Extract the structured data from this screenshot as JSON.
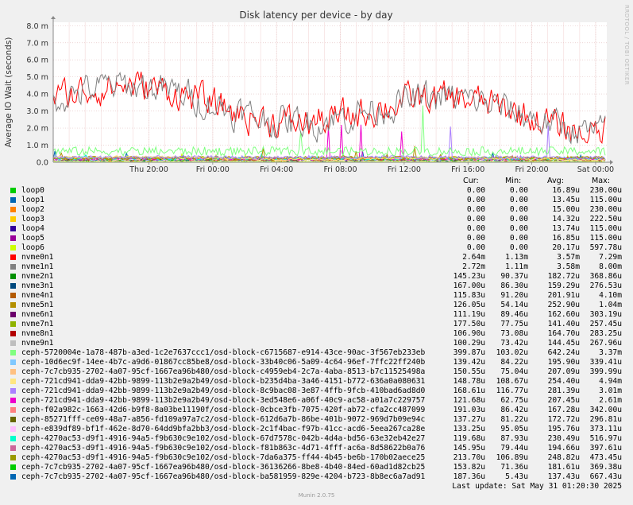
{
  "chart_data": {
    "type": "line",
    "title": "Disk latency per device - by day",
    "ylabel": "Average IO Wait (seconds)",
    "xlabel": "",
    "ylim": [
      0,
      0.0082
    ],
    "y_ticks": [
      {
        "value": 0,
        "label": "0.0"
      },
      {
        "value": 0.001,
        "label": "1.0 m"
      },
      {
        "value": 0.002,
        "label": "2.0 m"
      },
      {
        "value": 0.003,
        "label": "3.0 m"
      },
      {
        "value": 0.004,
        "label": "4.0 m"
      },
      {
        "value": 0.005,
        "label": "5.0 m"
      },
      {
        "value": 0.006,
        "label": "6.0 m"
      },
      {
        "value": 0.007,
        "label": "7.0 m"
      },
      {
        "value": 0.008,
        "label": "8.0 m"
      }
    ],
    "x_ticks": [
      "Thu 20:00",
      "Fri 00:00",
      "Fri 04:00",
      "Fri 08:00",
      "Fri 12:00",
      "Fri 16:00",
      "Fri 20:00",
      "Sat 00:00"
    ],
    "x_range_hours": [
      -6,
      28.7
    ],
    "grid": true,
    "legend_columns": [
      "Cur:",
      "Min:",
      "Avg:",
      "Max:"
    ],
    "series": [
      {
        "name": "loop0",
        "color": "#00CC00",
        "cur": "0.00",
        "min": "0.00",
        "avg": "16.89u",
        "max": "230.00u"
      },
      {
        "name": "loop1",
        "color": "#0066B3",
        "cur": "0.00",
        "min": "0.00",
        "avg": "13.45u",
        "max": "115.00u"
      },
      {
        "name": "loop2",
        "color": "#FF8000",
        "cur": "0.00",
        "min": "0.00",
        "avg": "15.00u",
        "max": "230.00u"
      },
      {
        "name": "loop3",
        "color": "#FFCC00",
        "cur": "0.00",
        "min": "0.00",
        "avg": "14.32u",
        "max": "222.50u"
      },
      {
        "name": "loop4",
        "color": "#330099",
        "cur": "0.00",
        "min": "0.00",
        "avg": "13.74u",
        "max": "115.00u"
      },
      {
        "name": "loop5",
        "color": "#990099",
        "cur": "0.00",
        "min": "0.00",
        "avg": "16.85u",
        "max": "115.00u"
      },
      {
        "name": "loop6",
        "color": "#CCFF00",
        "cur": "0.00",
        "min": "0.00",
        "avg": "20.17u",
        "max": "597.78u"
      },
      {
        "name": "nvme0n1",
        "color": "#FF0000",
        "cur": "2.64m",
        "min": "1.13m",
        "avg": "3.57m",
        "max": "7.29m"
      },
      {
        "name": "nvme1n1",
        "color": "#808080",
        "cur": "2.72m",
        "min": "1.11m",
        "avg": "3.58m",
        "max": "8.00m"
      },
      {
        "name": "nvme2n1",
        "color": "#008F00",
        "cur": "145.23u",
        "min": "90.37u",
        "avg": "182.72u",
        "max": "368.86u"
      },
      {
        "name": "nvme3n1",
        "color": "#00487D",
        "cur": "167.00u",
        "min": "86.30u",
        "avg": "159.29u",
        "max": "276.53u"
      },
      {
        "name": "nvme4n1",
        "color": "#B35A00",
        "cur": "115.83u",
        "min": "91.20u",
        "avg": "201.91u",
        "max": "4.10m"
      },
      {
        "name": "nvme5n1",
        "color": "#B38F00",
        "cur": "126.05u",
        "min": "54.14u",
        "avg": "252.90u",
        "max": "1.04m"
      },
      {
        "name": "nvme6n1",
        "color": "#6B006B",
        "cur": "111.19u",
        "min": "89.46u",
        "avg": "162.60u",
        "max": "303.19u"
      },
      {
        "name": "nvme7n1",
        "color": "#8FB300",
        "cur": "177.50u",
        "min": "77.75u",
        "avg": "141.40u",
        "max": "257.45u"
      },
      {
        "name": "nvme8n1",
        "color": "#B30000",
        "cur": "106.90u",
        "min": "73.08u",
        "avg": "164.70u",
        "max": "283.25u"
      },
      {
        "name": "nvme9n1",
        "color": "#BEBEBE",
        "cur": "100.29u",
        "min": "73.42u",
        "avg": "144.45u",
        "max": "267.96u"
      },
      {
        "name": "ceph-5720004e-1a78-487b-a3ed-1c2e7637ccc1/osd-block-c6715687-e914-43ce-90ac-3f567eb233eb",
        "color": "#80FF80",
        "cur": "399.87u",
        "min": "103.02u",
        "avg": "642.24u",
        "max": "3.37m"
      },
      {
        "name": "ceph-10d6ec9f-14ee-4b7c-a9d6-01867cc85be8/osd-block-33b40c06-5a09-4c64-96ef-7ffc22ff240b",
        "color": "#80C9FF",
        "cur": "139.42u",
        "min": "84.22u",
        "avg": "195.90u",
        "max": "339.41u"
      },
      {
        "name": "ceph-7c7cb935-2702-4a07-95cf-1667ea96b480/osd-block-c4959eb4-2c7a-4aba-8513-b7c11525498a",
        "color": "#FFC080",
        "cur": "150.55u",
        "min": "75.04u",
        "avg": "207.09u",
        "max": "399.99u"
      },
      {
        "name": "ceph-721cd941-dda9-42bb-9899-113b2e9a2b49/osd-block-b235d4ba-3a46-4151-b772-636a0a080631",
        "color": "#FFE680",
        "cur": "148.78u",
        "min": "108.67u",
        "avg": "254.40u",
        "max": "4.94m"
      },
      {
        "name": "ceph-721cd941-dda9-42bb-9899-113b2e9a2b49/osd-block-8c9bac08-3e87-4ffb-9fcb-410bad6ad8d0",
        "color": "#AA80FF",
        "cur": "168.61u",
        "min": "116.77u",
        "avg": "281.39u",
        "max": "3.01m"
      },
      {
        "name": "ceph-721cd941-dda9-42bb-9899-113b2e9a2b49/osd-block-3ed548e6-a06f-40c9-ac58-a01a7c229757",
        "color": "#EE00CC",
        "cur": "121.68u",
        "min": "62.75u",
        "avg": "207.45u",
        "max": "2.61m"
      },
      {
        "name": "ceph-f02a982c-1663-42d6-b9f8-8a03be11190f/osd-block-0cbce3fb-7075-420f-ab72-cfa2cc487099",
        "color": "#FF8080",
        "cur": "191.03u",
        "min": "86.42u",
        "avg": "167.28u",
        "max": "342.00u"
      },
      {
        "name": "ceph-85271fff-ce09-48a7-a856-fd109a97a7c2/osd-block-612d6a7b-86be-401b-9072-969d7b09e94c",
        "color": "#666600",
        "cur": "137.27u",
        "min": "81.22u",
        "avg": "172.72u",
        "max": "296.81u"
      },
      {
        "name": "ceph-e839df89-bf1f-462e-8d70-64dd9bfa2bb3/osd-block-2c1f4bac-f97b-41cc-acd6-5eea267ca28e",
        "color": "#FFBFFF",
        "cur": "133.25u",
        "min": "95.05u",
        "avg": "195.76u",
        "max": "373.11u"
      },
      {
        "name": "ceph-4270ac53-d9f1-4916-94a5-f9b630c9e102/osd-block-67d7578c-042b-4d4a-bd56-63e32eb42e27",
        "color": "#00FFCC",
        "cur": "119.68u",
        "min": "87.93u",
        "avg": "230.49u",
        "max": "516.97u"
      },
      {
        "name": "ceph-4270ac53-d9f1-4916-94a5-f9b630c9e102/osd-block-f81b863c-4d71-4fff-ac6a-8d58622b0a76",
        "color": "#CC6699",
        "cur": "145.95u",
        "min": "79.44u",
        "avg": "194.66u",
        "max": "397.61u"
      },
      {
        "name": "ceph-4270ac53-d9f1-4916-94a5-f9b630c9e102/osd-block-7da6a375-ff44-4b45-be6b-170b02aece25",
        "color": "#999900",
        "cur": "213.70u",
        "min": "106.89u",
        "avg": "248.82u",
        "max": "473.45u"
      },
      {
        "name": "ceph-7c7cb935-2702-4a07-95cf-1667ea96b480/osd-block-36136266-8be8-4b40-84ed-60ad1d82cb25",
        "color": "#00CC00",
        "cur": "153.82u",
        "min": "71.36u",
        "avg": "181.61u",
        "max": "369.38u"
      },
      {
        "name": "ceph-7c7cb935-2702-4a07-95cf-1667ea96b480/osd-block-ba581959-829e-4204-b723-8b8ec6a7ad91",
        "color": "#0066B3",
        "cur": "187.36u",
        "min": "5.43u",
        "avg": "137.43u",
        "max": "667.43u"
      }
    ]
  },
  "last_update": "Last update: Sat May 31 01:20:30 2025",
  "footer": "Munin 2.0.75",
  "watermark": "RRDTOOL / TOBI OETIKER"
}
